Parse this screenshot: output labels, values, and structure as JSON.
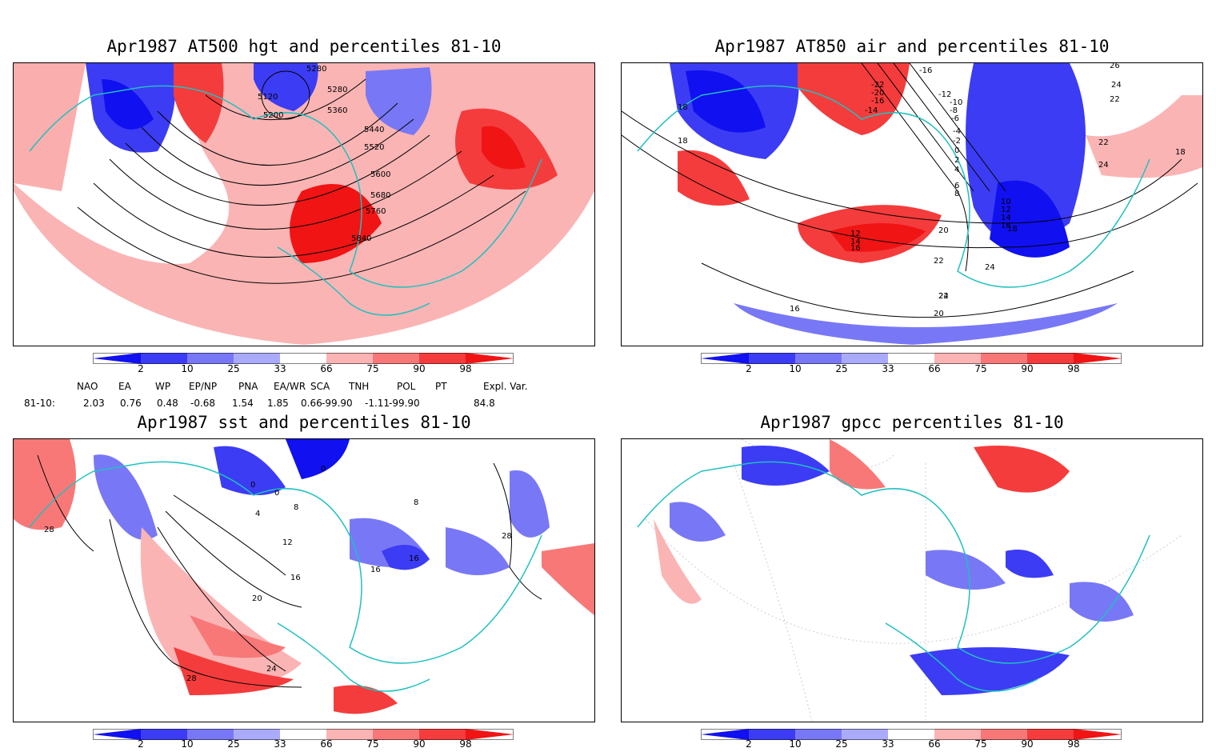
{
  "panels": [
    {
      "title": "Apr1987 AT500 hgt and percentiles 81-10",
      "contour_labels": [
        "5280",
        "5120",
        "5200",
        "5280",
        "5360",
        "5440",
        "5520",
        "5600",
        "5680",
        "5760",
        "5840"
      ]
    },
    {
      "title": "Apr1987 AT850 air and percentiles 81-10",
      "contour_labels": [
        "-16",
        "-22",
        "-20",
        "-16",
        "-14",
        "-12",
        "-10",
        "-8",
        "-6",
        "-4",
        "-2",
        "0",
        "2",
        "4",
        "6",
        "8",
        "10",
        "12",
        "14",
        "16",
        "18",
        "18",
        "18",
        "12",
        "14",
        "16",
        "20",
        "22",
        "24",
        "22",
        "20",
        "24",
        "26",
        "24",
        "22",
        "22",
        "24",
        "18",
        "16"
      ]
    },
    {
      "title": "Apr1987 sst and percentiles 81-10",
      "contour_labels": [
        "0",
        "0",
        "0",
        "4",
        "8",
        "12",
        "16",
        "20",
        "24",
        "28",
        "28",
        "28",
        "8",
        "16",
        "16"
      ]
    },
    {
      "title": "Apr1987 gpcc percentiles 81-10"
    }
  ],
  "colorbar": {
    "labels": [
      "2",
      "10",
      "25",
      "33",
      "66",
      "75",
      "90",
      "98"
    ],
    "colors": [
      "#1010f0",
      "#3c3cf4",
      "#7878f6",
      "#aaaafa",
      "#fab4b4",
      "#f87878",
      "#f43c3c",
      "#f01414"
    ]
  },
  "indices": {
    "headers": [
      "NAO",
      "EA",
      "WP",
      "EP/NP",
      "PNA",
      "EA/WR",
      "SCA",
      "TNH",
      "POL",
      "PT",
      "Expl. Var."
    ],
    "row_label": "81-10:",
    "values": [
      "2.03",
      "0.76",
      "0.48",
      "-0.68",
      "1.54",
      "1.85",
      "0.66",
      "-99.90",
      "-1.11",
      "-99.90",
      "84.8"
    ]
  },
  "coast_color": "#20c0c0"
}
